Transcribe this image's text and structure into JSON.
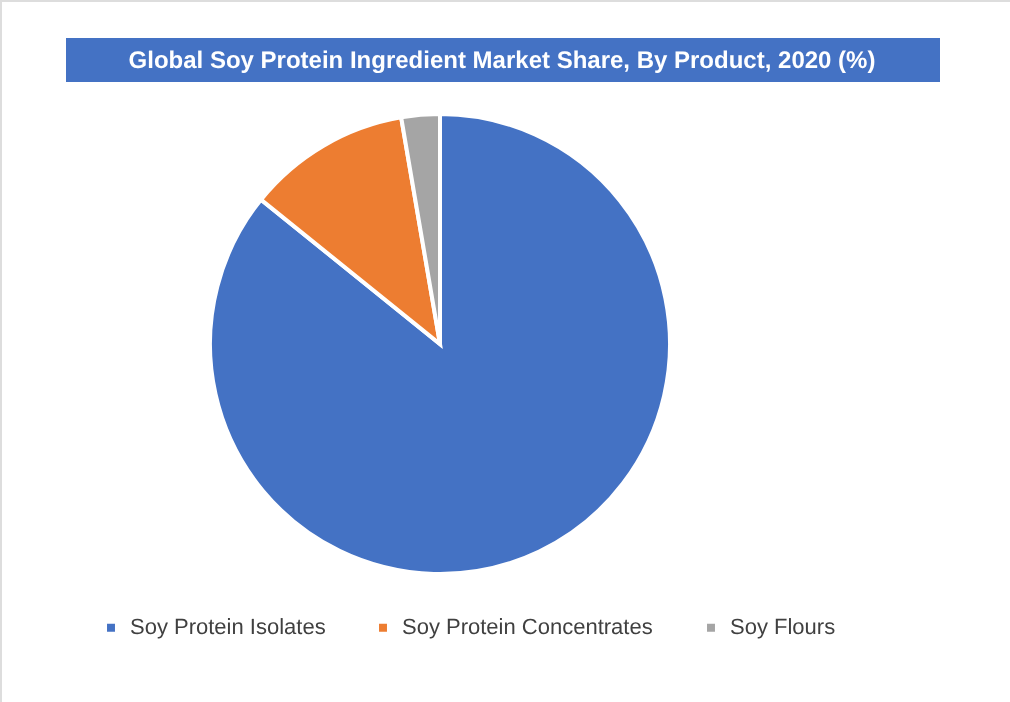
{
  "chart_data": {
    "type": "pie",
    "title": "Global Soy Protein Ingredient Market Share, By Product, 2020 (%)",
    "categories": [
      "Soy Protein Isolates",
      "Soy Protein Concentrates",
      "Soy Flours"
    ],
    "values": [
      85.8,
      11.5,
      2.7
    ],
    "colors": [
      "#4472c4",
      "#ed7d31",
      "#a5a5a5"
    ],
    "legend": "bottom"
  }
}
